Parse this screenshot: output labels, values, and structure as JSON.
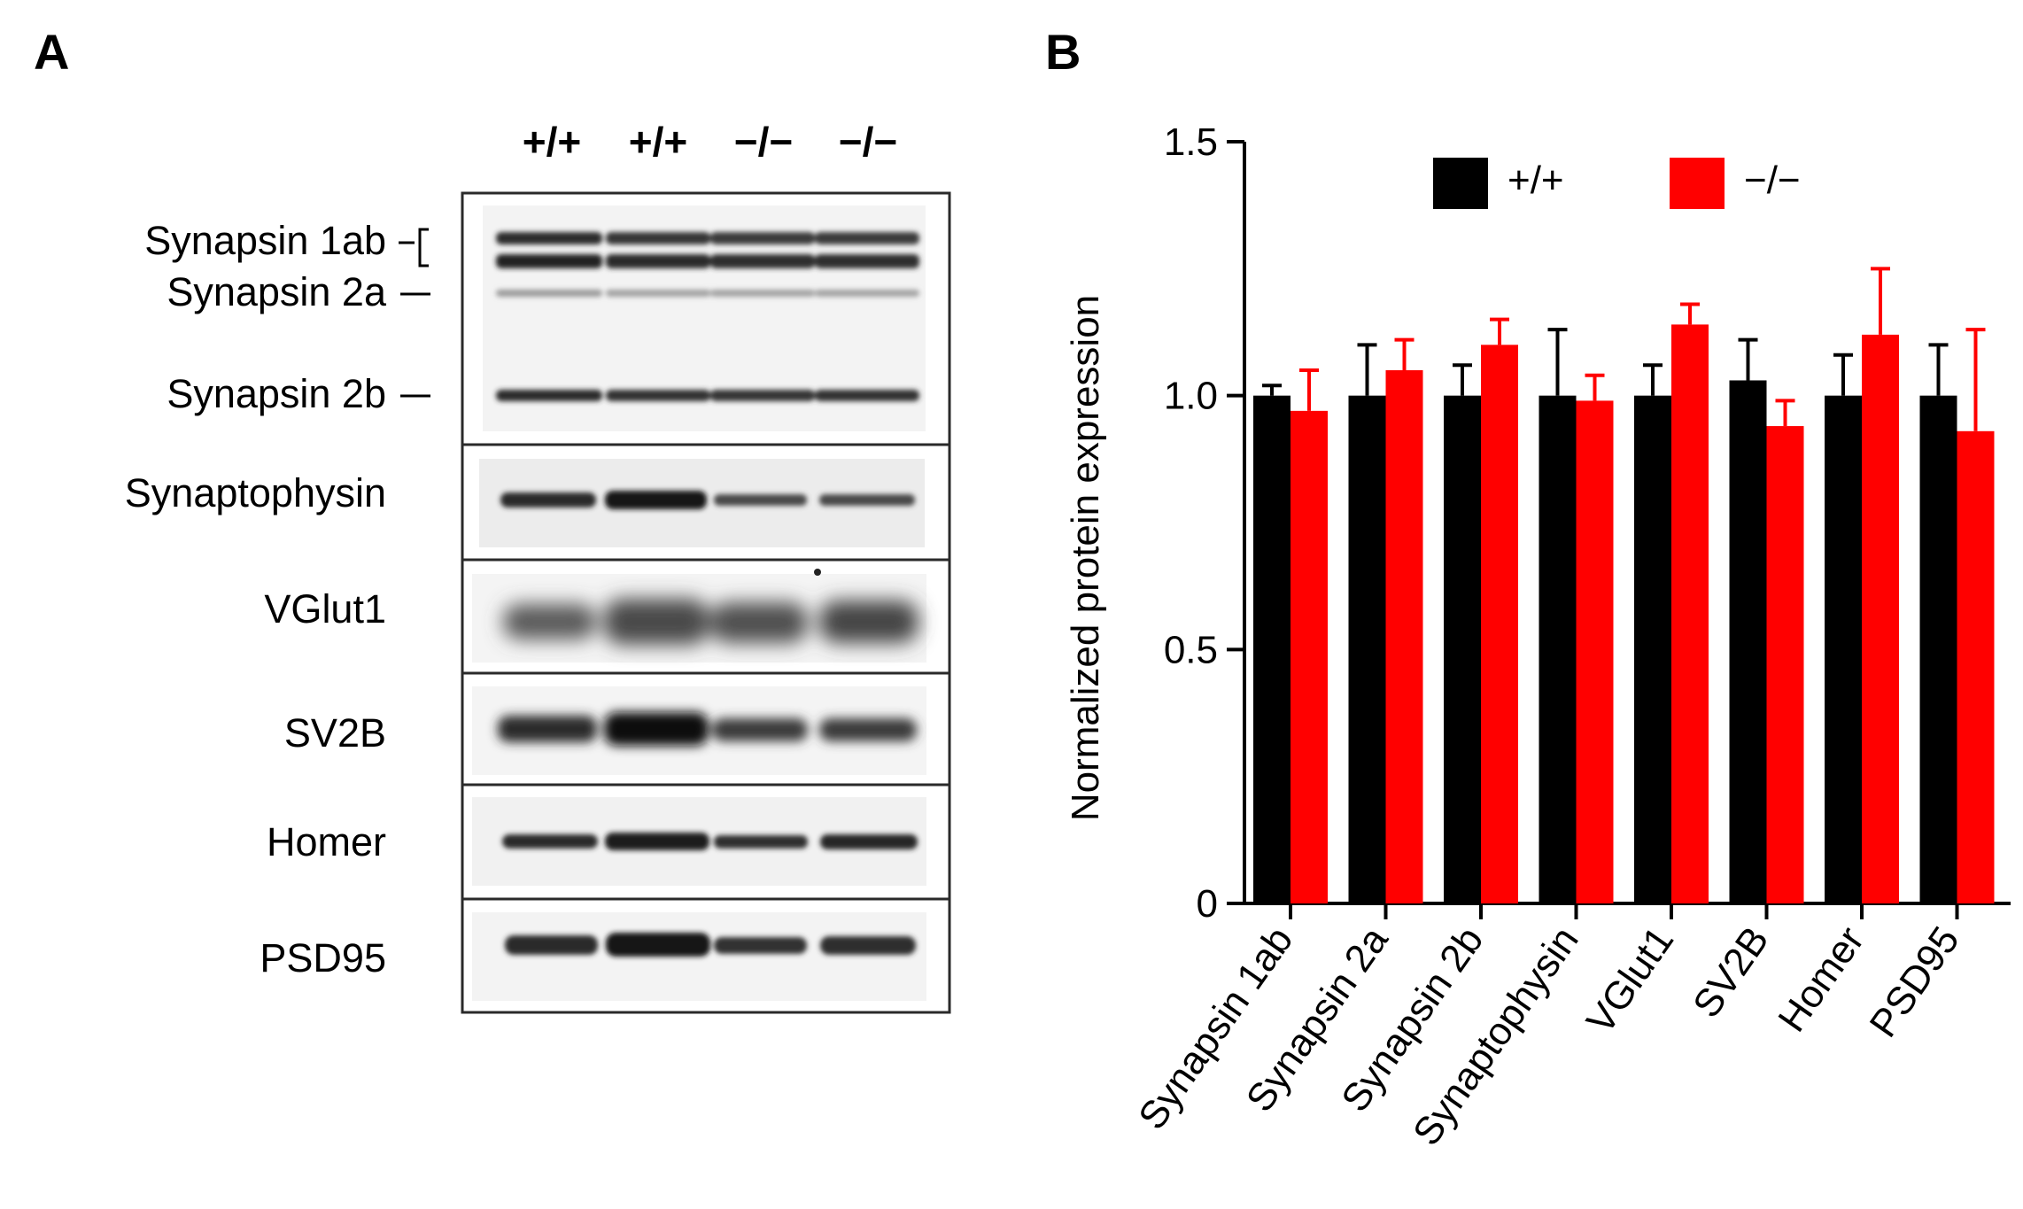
{
  "panels": {
    "a": {
      "letter": "A"
    },
    "b": {
      "letter": "B"
    }
  },
  "blot": {
    "lanes": [
      "+/+",
      "+/+",
      "−/−",
      "−/−"
    ],
    "bands": {
      "synapsin_1ab": "Synapsin 1ab",
      "synapsin_2a": "Synapsin 2a",
      "synapsin_2b": "Synapsin 2b",
      "synaptophysin": "Synaptophysin",
      "vglut1": "VGlut1",
      "sv2b": "SV2B",
      "homer": "Homer",
      "psd95": "PSD95"
    }
  },
  "chart_data": {
    "type": "bar",
    "title": "",
    "xlabel": "",
    "ylabel": "Normalized protein expression",
    "ylim": [
      0,
      1.5
    ],
    "yticks": [
      "0",
      "0.5",
      "1.0",
      "1.5"
    ],
    "ytick_values": [
      0,
      0.5,
      1.0,
      1.5
    ],
    "categories": [
      "Synapsin 1ab",
      "Synapsin 2a",
      "Synapsin 2b",
      "Synaptophysin",
      "VGlut1",
      "SV2B",
      "Homer",
      "PSD95"
    ],
    "series": [
      {
        "name": "+/+",
        "color": "#000000",
        "values": [
          1.0,
          1.0,
          1.0,
          1.0,
          1.0,
          1.03,
          1.0,
          1.0
        ],
        "errors": [
          0.02,
          0.1,
          0.06,
          0.13,
          0.06,
          0.08,
          0.08,
          0.1
        ]
      },
      {
        "name": "−/−",
        "color": "#ff0000",
        "values": [
          0.97,
          1.05,
          1.1,
          0.99,
          1.14,
          0.94,
          1.12,
          0.93
        ],
        "errors": [
          0.08,
          0.06,
          0.05,
          0.05,
          0.04,
          0.05,
          0.13,
          0.2
        ]
      }
    ],
    "legend_position": "top"
  }
}
